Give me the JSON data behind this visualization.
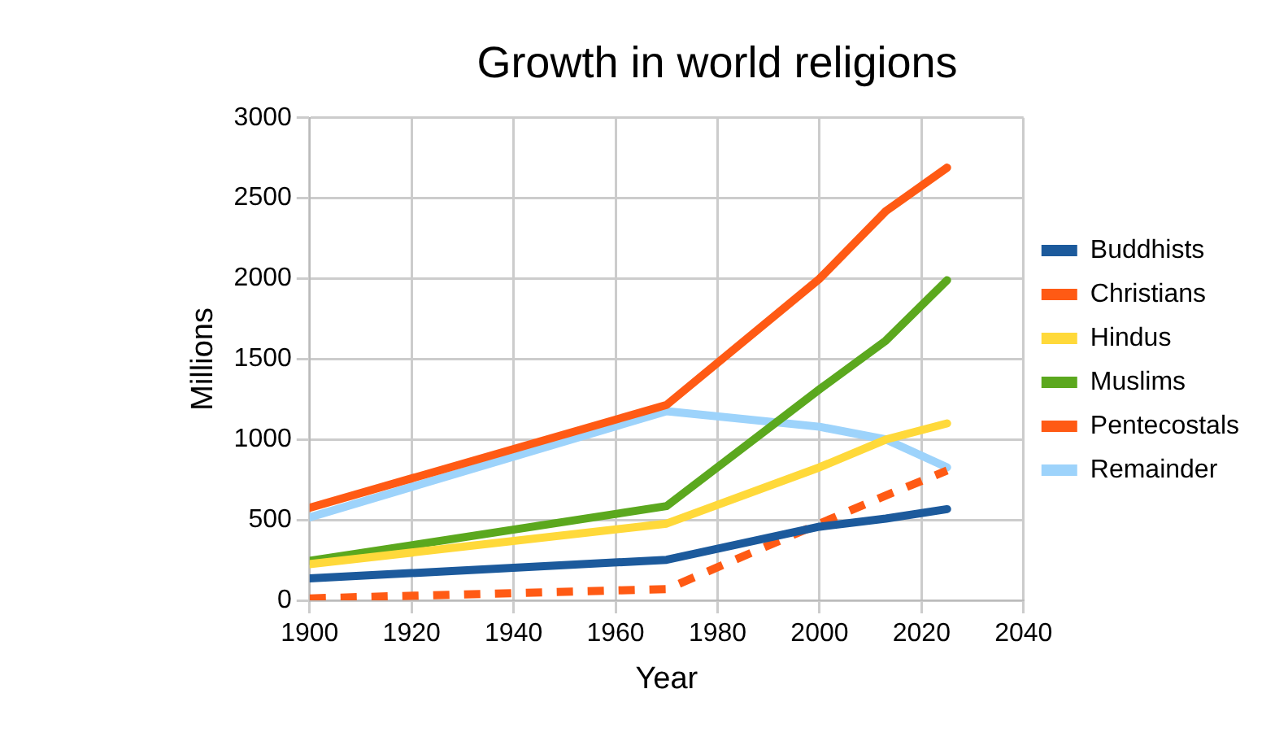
{
  "chart_data": {
    "type": "line",
    "title": "Growth in world religions",
    "xlabel": "Year",
    "ylabel": "Millions",
    "x": [
      1900,
      1970,
      2000,
      2013,
      2025
    ],
    "xlim": [
      1900,
      2040
    ],
    "xticks": [
      1900,
      1920,
      1940,
      1960,
      1980,
      2000,
      2020,
      2040
    ],
    "ylim": [
      0,
      3000
    ],
    "yticks": [
      0,
      500,
      1000,
      1500,
      2000,
      2500,
      3000
    ],
    "grid": true,
    "legend": "right",
    "marker": "none",
    "series": [
      {
        "name": "Buddhists",
        "color": "#1c5a9c",
        "values": [
          136,
          252,
          458,
          508,
          567
        ]
      },
      {
        "name": "Christians",
        "color": "#ff5a14",
        "values": [
          575,
          1215,
          2000,
          2420,
          2690
        ]
      },
      {
        "name": "Hindus",
        "color": "#ffd93a",
        "values": [
          225,
          477,
          827,
          1000,
          1100
        ]
      },
      {
        "name": "Muslims",
        "color": "#5ba81e",
        "values": [
          245,
          586,
          1312,
          1615,
          1990
        ]
      },
      {
        "name": "Pentecostals",
        "color": "#ff5a14",
        "line_style": "dashed",
        "values": [
          12,
          70,
          477,
          652,
          807
        ]
      },
      {
        "name": "Remainder",
        "color": "#9dd3fb",
        "values": [
          516,
          1176,
          1079,
          1000,
          827
        ]
      }
    ]
  }
}
